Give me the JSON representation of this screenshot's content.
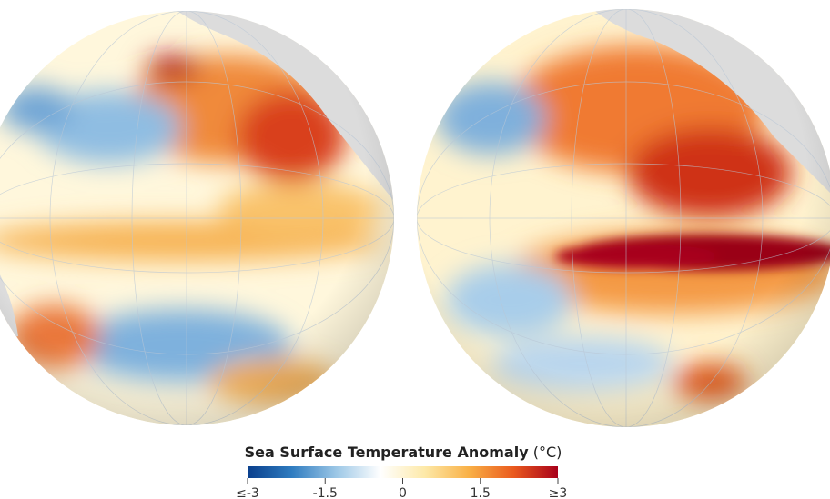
{
  "legend": {
    "title": "Sea Surface Temperature Anomaly",
    "unit": "(°C)",
    "range": [
      -3,
      3
    ],
    "ticks": [
      {
        "value": -3,
        "label": "≤-3"
      },
      -1.5,
      0,
      1.5,
      {
        "value": 3,
        "label": "≥3"
      }
    ],
    "colors": [
      "#0a3f8c",
      "#2f7cc0",
      "#9cc7e6",
      "#ffffff",
      "#fde9a8",
      "#f9b046",
      "#ea5a1e",
      "#a8001a"
    ]
  }
}
